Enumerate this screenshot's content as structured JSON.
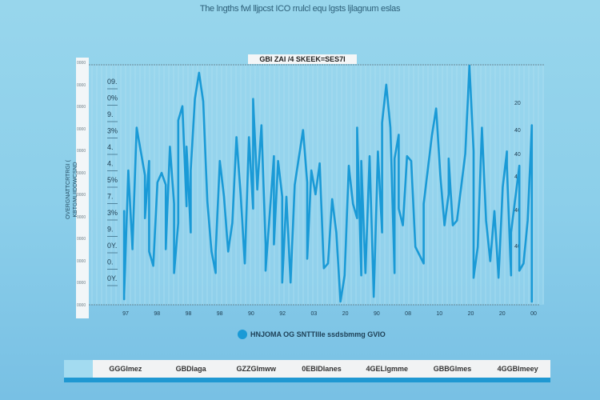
{
  "title": "The lngths fwl lljpcst ICO rrulcl equ lgsts ljlagnum eslas",
  "chart_data": {
    "type": "line",
    "title": "GBI ZAI /4   SKEEK=SES7I",
    "ylabel": "OVERGNATTCRTRGI ( KBTGMLIIDDWCSND",
    "xlabel": "",
    "xlim": [
      0,
      100
    ],
    "ylim": [
      0,
      100
    ],
    "grid": true,
    "legend_position": "bottom-center",
    "y_tick_labels_outer": [
      "0000",
      "0000",
      "0000",
      "0000",
      "0000",
      "0000",
      "0000",
      "0000",
      "0000",
      "0000",
      "0000",
      "0000"
    ],
    "y_tick_labels_inner": [
      "09.",
      "0%",
      "9.",
      "3%",
      "4.",
      "4.",
      "5%",
      "7.",
      "3%",
      "9.",
      "0Y.",
      "0.",
      "0Y."
    ],
    "right_labels": [
      "20",
      "40",
      "40",
      "40",
      "40",
      "40"
    ],
    "x_tick_labels": [
      "97",
      "98",
      "98",
      "98",
      "90",
      "92",
      "03",
      "20",
      "90",
      "08",
      "10",
      "20",
      "20",
      "00"
    ],
    "series": [
      {
        "name": "HNJOMA OG SNTTIlle ssdsbmmg GVIO",
        "color": "#1a9ad6",
        "x": [
          1,
          1,
          1,
          2,
          3,
          3,
          4,
          6,
          6,
          7,
          7,
          8,
          9,
          10,
          11,
          11,
          12,
          13,
          13,
          14,
          14,
          15,
          16,
          16,
          17,
          17,
          18,
          19,
          20,
          21,
          22,
          23,
          23,
          24,
          25,
          26,
          27,
          28,
          29,
          30,
          31,
          32,
          32,
          33,
          34,
          35,
          35,
          37,
          37,
          38,
          39,
          39,
          40,
          41,
          42,
          44,
          45,
          45,
          46,
          47,
          48,
          49,
          50,
          51,
          52,
          53,
          54,
          55,
          56,
          57,
          57,
          58,
          58,
          59,
          60,
          61,
          62,
          63,
          63,
          64,
          65,
          66,
          66,
          67,
          67,
          68,
          69,
          70,
          71,
          73,
          73,
          75,
          76,
          77,
          78,
          79,
          79,
          80,
          81,
          83,
          84,
          85,
          85,
          86,
          87,
          88,
          89,
          90,
          91,
          92,
          93,
          93,
          94,
          94,
          96,
          96,
          97,
          98,
          99,
          99
        ],
        "y": [
          2,
          39,
          4,
          56,
          23,
          24,
          74,
          54,
          36,
          60,
          22,
          16,
          51,
          55,
          50,
          23,
          66,
          42,
          13,
          34,
          77,
          83,
          41,
          66,
          30,
          56,
          86,
          97,
          85,
          43,
          22,
          13,
          22,
          60,
          45,
          22,
          34,
          70,
          46,
          17,
          70,
          40,
          86,
          48,
          75,
          25,
          14,
          62,
          25,
          60,
          45,
          9,
          45,
          9,
          50,
          73,
          51,
          19,
          56,
          46,
          59,
          15,
          17,
          44,
          30,
          1,
          12,
          58,
          42,
          36,
          74,
          12,
          60,
          13,
          62,
          3,
          64,
          30,
          76,
          92,
          74,
          13,
          61,
          71,
          40,
          33,
          62,
          60,
          24,
          17,
          42,
          71,
          82,
          54,
          33,
          46,
          61,
          33,
          35,
          63,
          100,
          64,
          11,
          24,
          74,
          35,
          18,
          39,
          11,
          49,
          64,
          58,
          12,
          30,
          58,
          14,
          17,
          35,
          75,
          1
        ]
      }
    ]
  },
  "table": {
    "cells": [
      "GGGlmez",
      "GBDlaga",
      "GZZGlmww",
      "0EBIDlanes",
      "4GELlgmme",
      "GBBGlmes",
      "4GGBlmeey"
    ]
  }
}
